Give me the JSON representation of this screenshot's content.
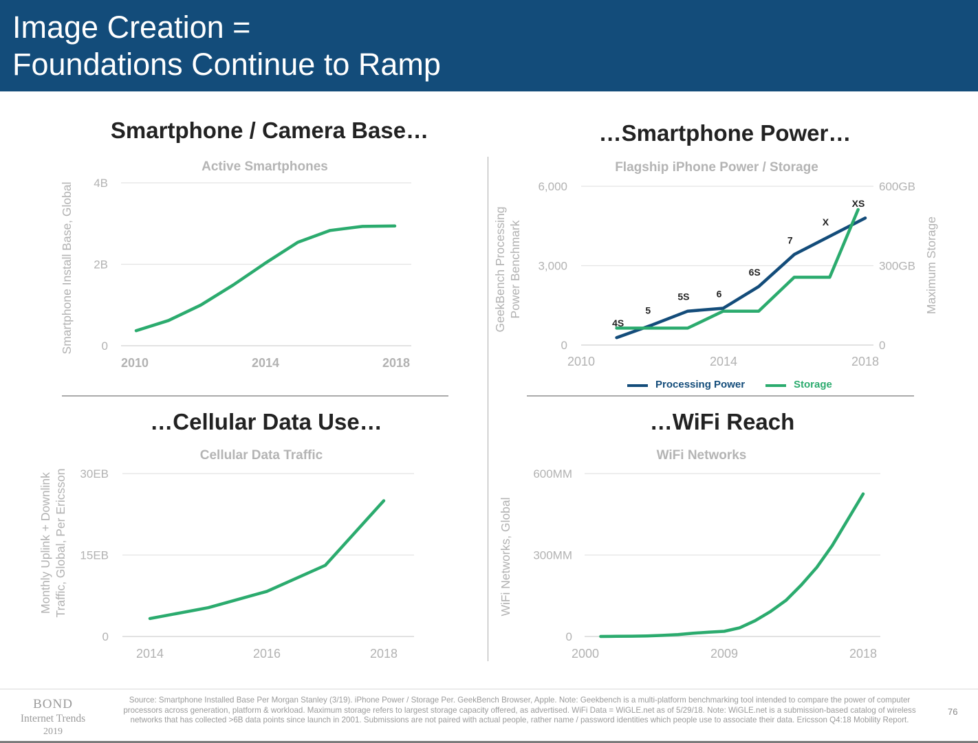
{
  "header": {
    "title_line1": "Image Creation =",
    "title_line2": "Foundations Continue to Ramp"
  },
  "colors": {
    "header_bg": "#134c7a",
    "processing_power": "#134c7a",
    "storage": "#2bab6e",
    "green_line": "#2bab6e"
  },
  "panels": {
    "smartphones": {
      "heading": "Smartphone / Camera Base…"
    },
    "power": {
      "heading": "…Smartphone Power…"
    },
    "cellular": {
      "heading": "…Cellular Data Use…"
    },
    "wifi": {
      "heading": "…WiFi Reach"
    }
  },
  "chart_data": [
    {
      "type": "line",
      "title": "Active Smartphones",
      "ylabel": "Smartphone Install Base, Global",
      "xlabel": "",
      "xlim": [
        2010,
        2018
      ],
      "ylim": [
        0,
        4
      ],
      "x_ticks": [
        "2010",
        "2014",
        "2018"
      ],
      "y_ticks": [
        "0",
        "2B",
        "4B"
      ],
      "grid": true,
      "series": [
        {
          "x": [
            2010,
            2011,
            2012,
            2013,
            2014,
            2015,
            2016,
            2017,
            2018
          ],
          "values": [
            0.37,
            0.62,
            1.0,
            1.49,
            2.03,
            2.54,
            2.83,
            2.93,
            2.94
          ]
        }
      ]
    },
    {
      "type": "line",
      "title": "Flagship iPhone Power / Storage",
      "ylabel": "GeekBench Processing Power Benchmark",
      "y2label": "Maximum Storage",
      "xlabel": "",
      "xlim": [
        2010,
        2018
      ],
      "ylim": [
        0,
        6000
      ],
      "y2lim": [
        0,
        600
      ],
      "x_ticks": [
        "2010",
        "2014",
        "2018"
      ],
      "y_ticks": [
        "0",
        "3,000",
        "6,000"
      ],
      "y2_ticks": [
        "0",
        "300GB",
        "600GB"
      ],
      "grid": true,
      "legend_position": "bottom",
      "series": [
        {
          "name": "Processing Power",
          "axis": "left",
          "x": [
            2011,
            2012,
            2013,
            2014,
            2015,
            2016,
            2017,
            2018
          ],
          "values": [
            280,
            760,
            1280,
            1390,
            2210,
            3420,
            4110,
            4800
          ]
        },
        {
          "name": "Storage",
          "axis": "right",
          "x": [
            2011,
            2012,
            2013,
            2014,
            2015,
            2016,
            2017,
            2017.8
          ],
          "values": [
            64,
            64,
            64,
            128,
            128,
            256,
            256,
            512
          ]
        }
      ],
      "annotations": [
        {
          "text": "4S",
          "x": 2011,
          "y": 280
        },
        {
          "text": "5",
          "x": 2012,
          "y": 760
        },
        {
          "text": "5S",
          "x": 2013,
          "y": 1280
        },
        {
          "text": "6",
          "x": 2014,
          "y": 1390
        },
        {
          "text": "6S",
          "x": 2015,
          "y": 2210
        },
        {
          "text": "7",
          "x": 2016,
          "y": 3420
        },
        {
          "text": "X",
          "x": 2017,
          "y": 4110
        },
        {
          "text": "XS",
          "x": 2018,
          "y": 4800
        }
      ]
    },
    {
      "type": "line",
      "title": "Cellular Data Traffic",
      "ylabel": "Monthly Uplink + Downlink Traffic, Global, Per Ericsson",
      "xlabel": "",
      "xlim": [
        2014,
        2018
      ],
      "ylim": [
        0,
        30
      ],
      "x_ticks": [
        "2014",
        "2016",
        "2018"
      ],
      "y_ticks": [
        "0",
        "15EB",
        "30EB"
      ],
      "grid": true,
      "series": [
        {
          "x": [
            2014,
            2015,
            2016,
            2017,
            2018
          ],
          "values": [
            3.3,
            5.3,
            8.3,
            13.1,
            25.0
          ]
        }
      ]
    },
    {
      "type": "line",
      "title": "WiFi Networks",
      "ylabel": "WiFi Networks, Global",
      "xlabel": "",
      "xlim": [
        2000,
        2018
      ],
      "ylim": [
        0,
        600
      ],
      "x_ticks": [
        "2000",
        "2009",
        "2018"
      ],
      "y_ticks": [
        "0",
        "300MM",
        "600MM"
      ],
      "grid": true,
      "series": [
        {
          "x": [
            2001,
            2002,
            2003,
            2004,
            2005,
            2006,
            2007,
            2008,
            2009,
            2010,
            2011,
            2012,
            2013,
            2014,
            2015,
            2016,
            2017,
            2018
          ],
          "values": [
            0,
            0.5,
            1,
            2,
            4,
            7,
            12,
            16,
            19,
            32,
            58,
            92,
            133,
            190,
            255,
            335,
            430,
            525
          ]
        }
      ]
    }
  ],
  "footer": {
    "brand": "BOND",
    "brand_sub": "Internet Trends",
    "brand_year": "2019",
    "source": "Source: Smartphone Installed Base Per Morgan Stanley (3/19). iPhone Power / Storage Per. GeekBench Browser, Apple. Note: Geekbench is a multi-platform benchmarking tool intended to compare the power of computer processors across generation, platform & workload. Maximum storage refers to largest storage capacity offered, as advertised. WiFi Data = WiGLE.net as of 5/29/18. Note: WiGLE.net is a submission-based catalog of wireless networks that has collected >6B data points since launch in 2001. Submissions are not paired with actual people, rather name / password identities which people use to associate their data. Ericsson Q4:18 Mobility Report.",
    "page_number": "76"
  }
}
